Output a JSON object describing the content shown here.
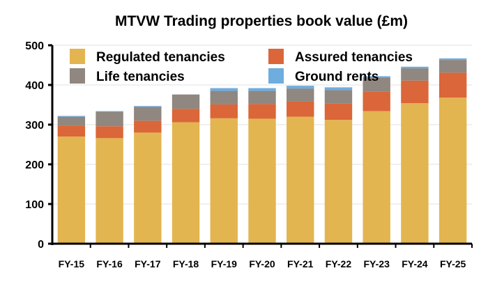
{
  "chart_data": {
    "type": "bar",
    "stacked": true,
    "title": "MTVW Trading properties book value (£m)",
    "xlabel": "",
    "ylabel": "",
    "ylim": [
      0,
      500
    ],
    "yticks": [
      "0",
      "100",
      "200",
      "300",
      "400",
      "500"
    ],
    "grid": true,
    "legend_position": "top",
    "categories": [
      "FY-15",
      "FY-16",
      "FY-17",
      "FY-18",
      "FY-19",
      "FY-20",
      "FY-21",
      "FY-22",
      "FY-23",
      "FY-24",
      "FY-25"
    ],
    "series": [
      {
        "name": "Regulated tenancies",
        "color": "#E3B550",
        "values": [
          270,
          266,
          280,
          306,
          316,
          315,
          320,
          312,
          334,
          354,
          368
        ]
      },
      {
        "name": "Assured tenancies",
        "color": "#DA6639",
        "values": [
          28,
          30,
          30,
          34,
          35,
          37,
          38,
          42,
          49,
          57,
          63
        ]
      },
      {
        "name": "Life tenancies",
        "color": "#8F8780",
        "values": [
          22,
          37,
          35,
          36,
          34,
          33,
          33,
          33,
          36,
          31,
          32
        ]
      },
      {
        "name": "Ground rents",
        "color": "#6FADDF",
        "values": [
          2,
          1,
          2,
          0,
          7,
          7,
          7,
          7,
          3,
          4,
          4
        ]
      }
    ]
  }
}
